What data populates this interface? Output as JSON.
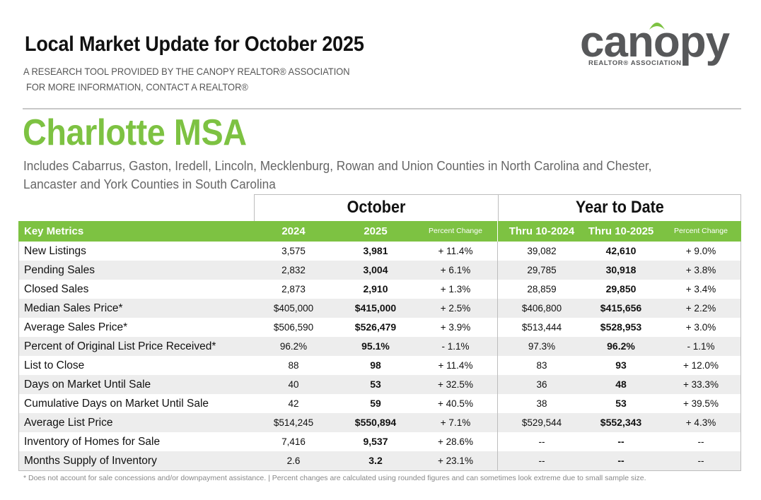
{
  "header": {
    "title": "Local Market Update for October 2025",
    "subtitle_1": "A RESEARCH TOOL PROVIDED BY THE CANOPY REALTOR® ASSOCIATION",
    "subtitle_2": "FOR MORE INFORMATION, CONTACT A REALTOR®"
  },
  "logo": {
    "wordmark": "canopy",
    "tagline": "REALTOR® ASSOCIATION"
  },
  "region": {
    "name": "Charlotte MSA",
    "description": "Includes Cabarrus, Gaston, Iredell, Lincoln, Mecklenburg, Rowan and Union Counties in North Carolina and Chester, Lancaster and York Counties in South Carolina"
  },
  "table": {
    "group_october": "October",
    "group_ytd": "Year to Date",
    "columns": {
      "metric": "Key Metrics",
      "oct_2024": "2024",
      "oct_2025": "2025",
      "oct_change": "Percent Change",
      "ytd_2024": "Thru 10-2024",
      "ytd_2025": "Thru 10-2025",
      "ytd_change": "Percent Change"
    },
    "rows": [
      {
        "metric": "New Listings",
        "oct_2024": "3,575",
        "oct_2025": "3,981",
        "oct_change": "+ 11.4%",
        "ytd_2024": "39,082",
        "ytd_2025": "42,610",
        "ytd_change": "+ 9.0%"
      },
      {
        "metric": "Pending Sales",
        "oct_2024": "2,832",
        "oct_2025": "3,004",
        "oct_change": "+ 6.1%",
        "ytd_2024": "29,785",
        "ytd_2025": "30,918",
        "ytd_change": "+ 3.8%"
      },
      {
        "metric": "Closed Sales",
        "oct_2024": "2,873",
        "oct_2025": "2,910",
        "oct_change": "+ 1.3%",
        "ytd_2024": "28,859",
        "ytd_2025": "29,850",
        "ytd_change": "+ 3.4%"
      },
      {
        "metric": "Median Sales Price*",
        "oct_2024": "$405,000",
        "oct_2025": "$415,000",
        "oct_change": "+ 2.5%",
        "ytd_2024": "$406,800",
        "ytd_2025": "$415,656",
        "ytd_change": "+ 2.2%"
      },
      {
        "metric": "Average Sales Price*",
        "oct_2024": "$506,590",
        "oct_2025": "$526,479",
        "oct_change": "+ 3.9%",
        "ytd_2024": "$513,444",
        "ytd_2025": "$528,953",
        "ytd_change": "+ 3.0%"
      },
      {
        "metric": "Percent of Original List Price Received*",
        "oct_2024": "96.2%",
        "oct_2025": "95.1%",
        "oct_change": "- 1.1%",
        "ytd_2024": "97.3%",
        "ytd_2025": "96.2%",
        "ytd_change": "- 1.1%"
      },
      {
        "metric": "List to Close",
        "oct_2024": "88",
        "oct_2025": "98",
        "oct_change": "+ 11.4%",
        "ytd_2024": "83",
        "ytd_2025": "93",
        "ytd_change": "+ 12.0%"
      },
      {
        "metric": "Days on Market Until Sale",
        "oct_2024": "40",
        "oct_2025": "53",
        "oct_change": "+ 32.5%",
        "ytd_2024": "36",
        "ytd_2025": "48",
        "ytd_change": "+ 33.3%"
      },
      {
        "metric": "Cumulative Days on Market Until Sale",
        "oct_2024": "42",
        "oct_2025": "59",
        "oct_change": "+ 40.5%",
        "ytd_2024": "38",
        "ytd_2025": "53",
        "ytd_change": "+ 39.5%"
      },
      {
        "metric": "Average List Price",
        "oct_2024": "$514,245",
        "oct_2025": "$550,894",
        "oct_change": "+ 7.1%",
        "ytd_2024": "$529,544",
        "ytd_2025": "$552,343",
        "ytd_change": "+ 4.3%"
      },
      {
        "metric": "Inventory of Homes for Sale",
        "oct_2024": "7,416",
        "oct_2025": "9,537",
        "oct_change": "+ 28.6%",
        "ytd_2024": "--",
        "ytd_2025": "--",
        "ytd_change": "--"
      },
      {
        "metric": "Months Supply of Inventory",
        "oct_2024": "2.6",
        "oct_2025": "3.2",
        "oct_change": "+ 23.1%",
        "ytd_2024": "--",
        "ytd_2025": "--",
        "ytd_change": "--"
      }
    ]
  },
  "footnote": "* Does not account for sale concessions and/or downpayment assistance.  |  Percent changes are calculated using rounded figures and can sometimes look extreme due to small sample size.",
  "colors": {
    "accent_green": "#7dc242",
    "logo_gray": "#57585a"
  }
}
